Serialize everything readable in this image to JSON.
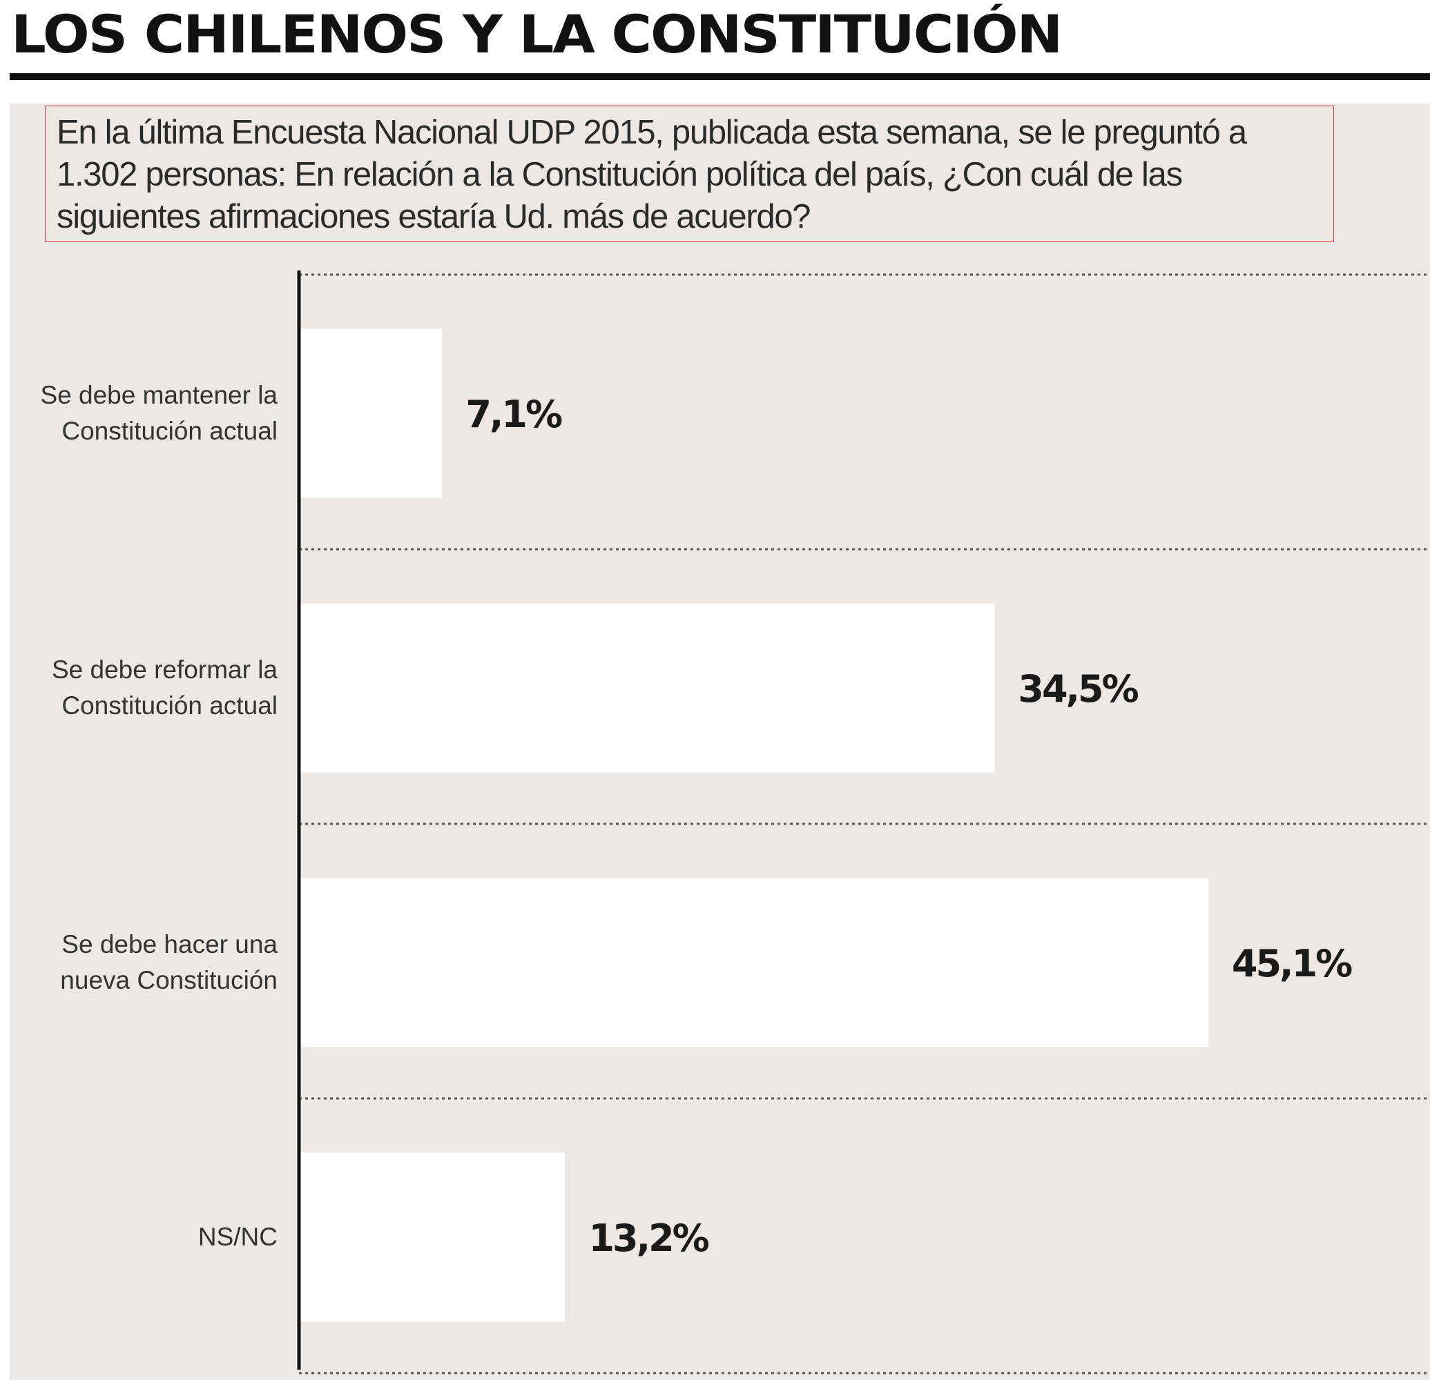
{
  "title": "LOS CHILENOS Y LA CONSTITUCIÓN",
  "question": "En la última Encuesta Nacional UDP 2015, publicada esta semana, se le preguntó a 1.302 personas: En relación a la Constitución política del país, ¿Con cuál de las siguientes afirmaciones estaría Ud. más de acuerdo?",
  "colors": {
    "background_panel": "#efe7e3",
    "bar": "#ffffff",
    "axis": "#111111",
    "gridline": "#555555",
    "question_border": "#d63b3b"
  },
  "chart_data": {
    "type": "bar",
    "orientation": "horizontal",
    "categories": [
      [
        "Se debe mantener la",
        "Constitución actual"
      ],
      [
        "Se debe reformar la",
        "Constitución actual"
      ],
      [
        "Se debe hacer una",
        "nueva Constitución"
      ],
      [
        "NS/NC"
      ]
    ],
    "values": [
      7.1,
      34.5,
      45.1,
      13.2
    ],
    "value_labels": [
      "7,1%",
      "34,5%",
      "45,1%",
      "13,2%"
    ],
    "unit": "%",
    "grid": "dotted horizontal separators",
    "legend": "none"
  }
}
